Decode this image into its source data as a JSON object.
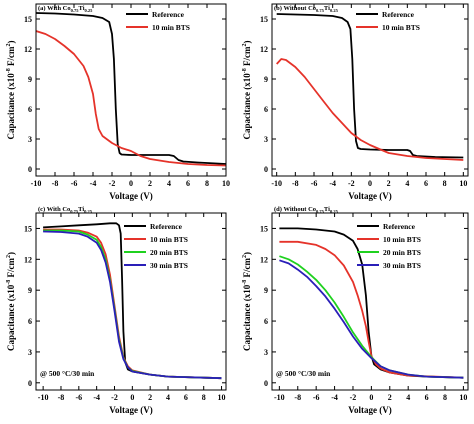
{
  "colors": {
    "Reference": "#000000",
    "10 min BTS": "#e5332a",
    "20 min BTS": "#1fd11f",
    "30 min BTS": "#2a1fb8"
  },
  "chart_data": [
    {
      "type": "line",
      "panel_label": "(a) With Co",
      "panel_sub1": "0.75",
      "panel_mid": "Ti",
      "panel_sub2": "0.25",
      "xlabel": "Voltage (V)",
      "ylabel_main": "Capacitance (x10",
      "ylabel_exp": "-8",
      "ylabel_unit": " F/cm",
      "ylabel_unit_exp": "2",
      "ylabel_end": ")",
      "xlim": [
        -10,
        10
      ],
      "ylim": [
        -0.7,
        16.5
      ],
      "xticks": [
        -10,
        -8,
        -6,
        -4,
        -2,
        0,
        2,
        4,
        6,
        8,
        10
      ],
      "yticks": [
        0,
        3,
        6,
        9,
        12,
        15
      ],
      "grid": false,
      "legend_position": "top-right",
      "annotation": "",
      "series": [
        {
          "name": "Reference",
          "points": [
            [
              -10,
              15.6
            ],
            [
              -8,
              15.55
            ],
            [
              -6,
              15.45
            ],
            [
              -4,
              15.3
            ],
            [
              -3,
              15.1
            ],
            [
              -2.3,
              14.7
            ],
            [
              -2.0,
              13.5
            ],
            [
              -1.8,
              11.0
            ],
            [
              -1.6,
              6.0
            ],
            [
              -1.4,
              2.5
            ],
            [
              -1.2,
              1.6
            ],
            [
              -1,
              1.45
            ],
            [
              0,
              1.4
            ],
            [
              2,
              1.4
            ],
            [
              4,
              1.4
            ],
            [
              4.5,
              1.3
            ],
            [
              5,
              0.9
            ],
            [
              5.5,
              0.75
            ],
            [
              7,
              0.65
            ],
            [
              10,
              0.5
            ]
          ]
        },
        {
          "name": "10 min BTS",
          "points": [
            [
              -10,
              13.8
            ],
            [
              -9,
              13.5
            ],
            [
              -8,
              13.0
            ],
            [
              -7,
              12.3
            ],
            [
              -6,
              11.5
            ],
            [
              -5,
              10.3
            ],
            [
              -4.5,
              9.2
            ],
            [
              -4,
              7.5
            ],
            [
              -3.7,
              5.5
            ],
            [
              -3.4,
              4.0
            ],
            [
              -3,
              3.3
            ],
            [
              -2,
              2.6
            ],
            [
              -1,
              2.1
            ],
            [
              0,
              1.8
            ],
            [
              1,
              1.3
            ],
            [
              2,
              1.0
            ],
            [
              4,
              0.7
            ],
            [
              6,
              0.5
            ],
            [
              8,
              0.4
            ],
            [
              10,
              0.35
            ]
          ]
        }
      ]
    },
    {
      "type": "line",
      "panel_label": "(b) Without Co",
      "panel_sub1": "0.75",
      "panel_mid": "Ti",
      "panel_sub2": "0.25",
      "xlabel": "Voltage (V)",
      "ylabel_main": "Capacitance (x10",
      "ylabel_exp": "-8",
      "ylabel_unit": " F/cm",
      "ylabel_unit_exp": "2",
      "ylabel_end": ")",
      "xlim": [
        -10.5,
        10.5
      ],
      "ylim": [
        -0.7,
        16.5
      ],
      "xticks": [
        -10,
        -8,
        -6,
        -4,
        -2,
        0,
        2,
        4,
        6,
        8,
        10
      ],
      "yticks": [
        0,
        3,
        6,
        9,
        12,
        15
      ],
      "grid": false,
      "legend_position": "top-right",
      "annotation": "",
      "series": [
        {
          "name": "Reference",
          "points": [
            [
              -10,
              15.5
            ],
            [
              -8,
              15.45
            ],
            [
              -6,
              15.4
            ],
            [
              -4,
              15.3
            ],
            [
              -3,
              15.1
            ],
            [
              -2.4,
              14.7
            ],
            [
              -2.1,
              14.0
            ],
            [
              -1.9,
              11.0
            ],
            [
              -1.7,
              6.0
            ],
            [
              -1.5,
              2.8
            ],
            [
              -1.3,
              2.1
            ],
            [
              -1,
              2.0
            ],
            [
              0,
              1.95
            ],
            [
              2,
              1.9
            ],
            [
              4,
              1.9
            ],
            [
              4.3,
              1.8
            ],
            [
              4.6,
              1.4
            ],
            [
              5,
              1.3
            ],
            [
              7,
              1.2
            ],
            [
              10,
              1.15
            ]
          ]
        },
        {
          "name": "10 min BTS",
          "points": [
            [
              -10,
              10.5
            ],
            [
              -9.5,
              11.0
            ],
            [
              -9,
              10.9
            ],
            [
              -8,
              10.2
            ],
            [
              -7,
              9.2
            ],
            [
              -6,
              8.0
            ],
            [
              -5,
              6.8
            ],
            [
              -4,
              5.6
            ],
            [
              -3,
              4.6
            ],
            [
              -2,
              3.6
            ],
            [
              -1,
              2.9
            ],
            [
              0,
              2.4
            ],
            [
              1,
              2.0
            ],
            [
              2,
              1.6
            ],
            [
              4,
              1.3
            ],
            [
              6,
              1.1
            ],
            [
              8,
              1.0
            ],
            [
              10,
              0.9
            ]
          ]
        }
      ]
    },
    {
      "type": "line",
      "panel_label": "(c) With Co",
      "panel_sub1": "0.75",
      "panel_mid": "Ti",
      "panel_sub2": "0.25",
      "xlabel": "Voltage (V)",
      "ylabel_main": "Capacitance (x10",
      "ylabel_exp": "-8",
      "ylabel_unit": " F/cm",
      "ylabel_unit_exp": "2",
      "ylabel_end": ")",
      "xlim": [
        -10.8,
        10.5
      ],
      "ylim": [
        -0.7,
        16.5
      ],
      "xticks": [
        -10,
        -8,
        -6,
        -4,
        -2,
        0,
        2,
        4,
        6,
        8,
        10
      ],
      "yticks": [
        0,
        3,
        6,
        9,
        12,
        15
      ],
      "grid": false,
      "legend_position": "top-right",
      "annotation": "@ 500 °C/30 min",
      "series": [
        {
          "name": "Reference",
          "points": [
            [
              -10,
              15.1
            ],
            [
              -8,
              15.2
            ],
            [
              -6,
              15.3
            ],
            [
              -4,
              15.4
            ],
            [
              -2.5,
              15.5
            ],
            [
              -1.8,
              15.5
            ],
            [
              -1.5,
              15.3
            ],
            [
              -1.3,
              14.5
            ],
            [
              -1.15,
              10.0
            ],
            [
              -1.0,
              5.0
            ],
            [
              -0.8,
              2.0
            ],
            [
              -0.5,
              1.3
            ],
            [
              0,
              1.1
            ],
            [
              2,
              0.8
            ],
            [
              4,
              0.6
            ],
            [
              6,
              0.55
            ],
            [
              8,
              0.5
            ],
            [
              10,
              0.45
            ]
          ]
        },
        {
          "name": "10 min BTS",
          "points": [
            [
              -10,
              14.9
            ],
            [
              -8,
              14.9
            ],
            [
              -6,
              14.8
            ],
            [
              -5,
              14.6
            ],
            [
              -4,
              14.2
            ],
            [
              -3.5,
              13.6
            ],
            [
              -3,
              12.5
            ],
            [
              -2.5,
              10.5
            ],
            [
              -2,
              7.5
            ],
            [
              -1.5,
              4.5
            ],
            [
              -1,
              2.5
            ],
            [
              -0.5,
              1.6
            ],
            [
              0,
              1.2
            ],
            [
              2,
              0.8
            ],
            [
              4,
              0.6
            ],
            [
              6,
              0.55
            ],
            [
              10,
              0.45
            ]
          ]
        },
        {
          "name": "20 min BTS",
          "points": [
            [
              -10,
              14.8
            ],
            [
              -8,
              14.8
            ],
            [
              -6,
              14.7
            ],
            [
              -5,
              14.4
            ],
            [
              -4,
              13.9
            ],
            [
              -3.5,
              13.2
            ],
            [
              -3,
              12.0
            ],
            [
              -2.5,
              10.0
            ],
            [
              -2,
              7.2
            ],
            [
              -1.5,
              4.2
            ],
            [
              -1,
              2.4
            ],
            [
              -0.5,
              1.5
            ],
            [
              0,
              1.15
            ],
            [
              2,
              0.8
            ],
            [
              4,
              0.6
            ],
            [
              10,
              0.45
            ]
          ]
        },
        {
          "name": "30 min BTS",
          "points": [
            [
              -10,
              14.7
            ],
            [
              -8,
              14.65
            ],
            [
              -6,
              14.5
            ],
            [
              -5,
              14.2
            ],
            [
              -4,
              13.6
            ],
            [
              -3.5,
              12.9
            ],
            [
              -3,
              11.7
            ],
            [
              -2.5,
              9.8
            ],
            [
              -2,
              7.0
            ],
            [
              -1.5,
              4.0
            ],
            [
              -1,
              2.3
            ],
            [
              -0.5,
              1.5
            ],
            [
              0,
              1.1
            ],
            [
              2,
              0.8
            ],
            [
              4,
              0.6
            ],
            [
              10,
              0.45
            ]
          ]
        }
      ]
    },
    {
      "type": "line",
      "panel_label": "(d) Without Co",
      "panel_sub1": "0.75",
      "panel_mid": "Ti",
      "panel_sub2": "0.25",
      "xlabel": "Voltage (V)",
      "ylabel_main": "Capacitance (x10",
      "ylabel_exp": "-8",
      "ylabel_unit": " F/cm",
      "ylabel_unit_exp": "2",
      "ylabel_end": ")",
      "xlim": [
        -10.8,
        10.5
      ],
      "ylim": [
        -0.7,
        16.5
      ],
      "xticks": [
        -10,
        -8,
        -6,
        -4,
        -2,
        0,
        2,
        4,
        6,
        8,
        10
      ],
      "yticks": [
        0,
        3,
        6,
        9,
        12,
        15
      ],
      "grid": false,
      "legend_position": "top-right",
      "annotation": "@ 500 °C/30 min",
      "series": [
        {
          "name": "Reference",
          "points": [
            [
              -10,
              15.0
            ],
            [
              -8,
              15.0
            ],
            [
              -6,
              14.9
            ],
            [
              -4,
              14.7
            ],
            [
              -3,
              14.4
            ],
            [
              -2,
              13.8
            ],
            [
              -1.5,
              13.0
            ],
            [
              -1,
              11.5
            ],
            [
              -0.6,
              8.5
            ],
            [
              -0.3,
              5.0
            ],
            [
              0,
              2.6
            ],
            [
              0.3,
              1.8
            ],
            [
              1,
              1.3
            ],
            [
              2,
              1.0
            ],
            [
              4,
              0.7
            ],
            [
              6,
              0.6
            ],
            [
              10,
              0.5
            ]
          ]
        },
        {
          "name": "10 min BTS",
          "points": [
            [
              -10,
              13.7
            ],
            [
              -8,
              13.7
            ],
            [
              -6,
              13.4
            ],
            [
              -5,
              13.0
            ],
            [
              -4,
              12.4
            ],
            [
              -3,
              11.4
            ],
            [
              -2,
              9.8
            ],
            [
              -1.5,
              8.5
            ],
            [
              -1,
              7.0
            ],
            [
              -0.6,
              5.5
            ],
            [
              -0.3,
              4.0
            ],
            [
              0,
              2.6
            ],
            [
              0.5,
              1.8
            ],
            [
              1,
              1.4
            ],
            [
              2,
              1.0
            ],
            [
              4,
              0.7
            ],
            [
              10,
              0.5
            ]
          ]
        },
        {
          "name": "20 min BTS",
          "points": [
            [
              -10,
              12.3
            ],
            [
              -9,
              12.0
            ],
            [
              -8,
              11.5
            ],
            [
              -7,
              10.8
            ],
            [
              -6,
              10.0
            ],
            [
              -5,
              9.0
            ],
            [
              -4,
              7.8
            ],
            [
              -3,
              6.4
            ],
            [
              -2,
              4.9
            ],
            [
              -1,
              3.6
            ],
            [
              0,
              2.5
            ],
            [
              1,
              1.6
            ],
            [
              2,
              1.2
            ],
            [
              4,
              0.8
            ],
            [
              6,
              0.6
            ],
            [
              10,
              0.5
            ]
          ]
        },
        {
          "name": "30 min BTS",
          "points": [
            [
              -10,
              11.9
            ],
            [
              -9,
              11.6
            ],
            [
              -8,
              11.0
            ],
            [
              -7,
              10.3
            ],
            [
              -6,
              9.4
            ],
            [
              -5,
              8.4
            ],
            [
              -4,
              7.2
            ],
            [
              -3,
              5.9
            ],
            [
              -2,
              4.5
            ],
            [
              -1,
              3.3
            ],
            [
              0,
              2.4
            ],
            [
              1,
              1.6
            ],
            [
              2,
              1.2
            ],
            [
              4,
              0.8
            ],
            [
              6,
              0.6
            ],
            [
              10,
              0.5
            ]
          ]
        }
      ]
    }
  ]
}
